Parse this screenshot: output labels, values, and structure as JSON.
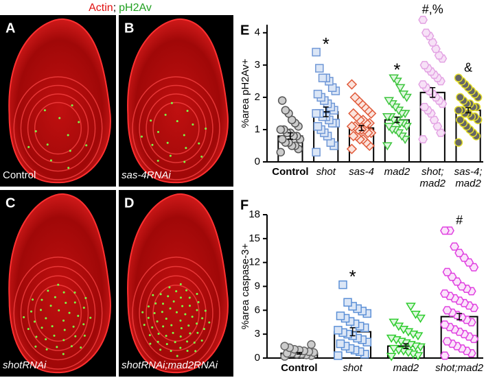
{
  "header": {
    "actin": "Actin",
    "separator": ";",
    "marker": "pH2Av"
  },
  "panels": [
    {
      "letter": "A",
      "label": "Control"
    },
    {
      "letter": "B",
      "label": "sas-4RNAi"
    },
    {
      "letter": "C",
      "label": "shotRNAi"
    },
    {
      "letter": "D",
      "label": "shotRNAi;mad2RNAi"
    }
  ],
  "chart_data": [
    {
      "type": "bar",
      "letter": "E",
      "ylabel": "%area pH2Av+",
      "categories": [
        "Control",
        "shot",
        "sas-4",
        "mad2",
        [
          "shot;",
          "mad2"
        ],
        [
          "sas-4;",
          "mad2"
        ]
      ],
      "label_style": [
        "bold",
        "italic",
        "italic",
        "italic",
        "italic",
        "italic"
      ],
      "values": [
        0.8,
        1.55,
        1.05,
        1.3,
        2.15,
        1.6
      ],
      "errors": [
        0.1,
        0.15,
        0.08,
        0.08,
        0.15,
        0.08
      ],
      "markers": [
        "circle",
        "square",
        "diamond",
        "triangle-down",
        "hexagon",
        "circle"
      ],
      "colors": [
        "#555555",
        "#6f97d6",
        "#e05a3a",
        "#3cc43c",
        "#e3a3e3",
        "#e5e02a"
      ],
      "fills": [
        "#cccccc",
        "#dbe6f6",
        "#fbe3dc",
        "#dff7df",
        "#f7e1f7",
        "#666666"
      ],
      "points": [
        [
          0.3,
          0.4,
          0.5,
          0.5,
          0.6,
          0.6,
          0.7,
          0.7,
          0.8,
          0.8,
          0.9,
          0.9,
          1.0,
          1.0,
          1.1,
          1.2,
          1.3,
          1.5,
          1.6,
          1.9
        ],
        [
          0.3,
          0.5,
          0.6,
          0.8,
          0.9,
          1.0,
          1.1,
          1.2,
          1.2,
          1.3,
          1.4,
          1.4,
          1.5,
          1.5,
          1.6,
          1.7,
          1.8,
          1.9,
          2.0,
          2.1,
          2.2,
          2.3,
          2.5,
          2.6,
          2.6,
          2.9,
          3.4
        ],
        [
          0.4,
          0.5,
          0.6,
          0.7,
          0.7,
          0.8,
          0.8,
          0.9,
          0.9,
          1.0,
          1.0,
          1.0,
          1.1,
          1.1,
          1.2,
          1.2,
          1.3,
          1.3,
          1.4,
          1.5,
          1.5,
          1.6,
          1.7,
          1.8,
          1.9,
          2.0,
          2.4
        ],
        [
          0.5,
          0.7,
          0.8,
          0.9,
          1.0,
          1.0,
          1.1,
          1.1,
          1.2,
          1.2,
          1.3,
          1.3,
          1.4,
          1.4,
          1.5,
          1.5,
          1.6,
          1.7,
          1.8,
          1.9,
          2.0,
          2.1,
          2.3,
          2.5,
          2.6
        ],
        [
          0.7,
          0.9,
          1.1,
          1.3,
          1.5,
          1.6,
          1.7,
          1.8,
          1.9,
          2.0,
          2.1,
          2.2,
          2.3,
          2.4,
          2.5,
          2.6,
          2.7,
          2.8,
          2.9,
          3.0,
          3.2,
          3.3,
          3.5,
          3.7,
          3.9,
          4.0,
          4.4
        ],
        [
          0.6,
          0.8,
          0.9,
          1.0,
          1.1,
          1.2,
          1.3,
          1.3,
          1.4,
          1.4,
          1.5,
          1.5,
          1.6,
          1.6,
          1.7,
          1.7,
          1.8,
          1.8,
          1.9,
          2.0,
          2.0,
          2.1,
          2.2,
          2.3,
          2.4,
          2.5,
          2.6
        ]
      ],
      "annotations": [
        null,
        "*",
        null,
        "*",
        "#,%",
        "&"
      ],
      "ylim": [
        0,
        4.25
      ],
      "yticks": [
        0,
        1,
        2,
        3,
        4
      ]
    },
    {
      "type": "bar",
      "letter": "F",
      "ylabel": "%area caspase-3+",
      "categories": [
        "Control",
        "shot",
        "mad2",
        "shot;mad2"
      ],
      "label_style": [
        "bold",
        "italic",
        "italic",
        "italic"
      ],
      "values": [
        0.6,
        3.3,
        1.5,
        5.2
      ],
      "errors": [
        0.1,
        0.5,
        0.3,
        0.4
      ],
      "markers": [
        "circle",
        "square",
        "triangle-down",
        "hexagon"
      ],
      "colors": [
        "#666666",
        "#5b8fd6",
        "#2ccc2c",
        "#e040e0"
      ],
      "fills": [
        "#cccccc",
        "#dbe6f6",
        "#dff7df",
        "#fbe3fb"
      ],
      "points": [
        [
          0.2,
          0.3,
          0.4,
          0.5,
          0.5,
          0.6,
          0.6,
          0.7,
          0.8,
          0.9,
          1.0,
          1.1,
          1.3,
          1.5,
          1.7
        ],
        [
          0.3,
          0.5,
          0.8,
          1.0,
          1.2,
          1.5,
          1.8,
          2.0,
          2.3,
          2.5,
          2.8,
          3.0,
          3.2,
          3.5,
          3.8,
          4.0,
          4.3,
          4.6,
          5.0,
          5.3,
          5.6,
          5.9,
          6.2,
          6.5,
          7.0,
          9.2
        ],
        [
          0.2,
          0.3,
          0.5,
          0.7,
          0.9,
          1.0,
          1.2,
          1.4,
          1.5,
          1.7,
          1.9,
          2.1,
          2.3,
          2.5,
          2.8,
          3.0,
          3.3,
          3.6,
          4.0,
          4.5,
          5.0,
          5.5,
          6.5
        ],
        [
          0.3,
          0.6,
          0.9,
          1.2,
          1.5,
          1.8,
          2.1,
          2.4,
          2.7,
          3.0,
          3.3,
          3.6,
          3.9,
          4.2,
          4.5,
          4.8,
          5.1,
          5.4,
          5.7,
          6.0,
          6.3,
          6.6,
          6.9,
          7.2,
          7.5,
          7.8,
          8.1,
          8.4,
          8.7,
          9.0,
          9.6,
          10.2,
          10.8,
          11.4,
          12.0,
          12.6,
          13.2,
          14.0,
          16.0,
          16.0
        ]
      ],
      "annotations": [
        null,
        "*",
        null,
        "#"
      ],
      "ylim": [
        0,
        18
      ],
      "yticks": [
        0,
        3,
        6,
        9,
        12,
        15,
        18
      ]
    }
  ]
}
